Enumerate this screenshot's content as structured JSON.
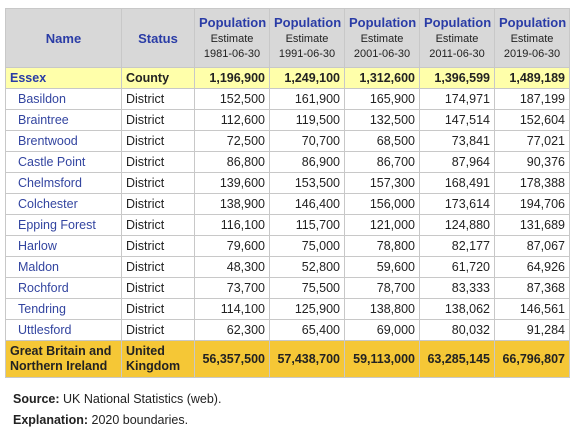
{
  "table": {
    "headers": [
      "Name",
      "Status"
    ],
    "population_headers": [
      {
        "title": "Population",
        "sub": "Estimate",
        "date": "1981-06-30"
      },
      {
        "title": "Population",
        "sub": "Estimate",
        "date": "1991-06-30"
      },
      {
        "title": "Population",
        "sub": "Estimate",
        "date": "2001-06-30"
      },
      {
        "title": "Population",
        "sub": "Estimate",
        "date": "2011-06-30"
      },
      {
        "title": "Population",
        "sub": "Estimate",
        "date": "2019-06-30"
      }
    ],
    "rows": [
      [
        "Essex",
        "County",
        "1,196,900",
        "1,249,100",
        "1,312,600",
        "1,396,599",
        "1,489,189"
      ],
      [
        "Basildon",
        "District",
        "152,500",
        "161,900",
        "165,900",
        "174,971",
        "187,199"
      ],
      [
        "Braintree",
        "District",
        "112,600",
        "119,500",
        "132,500",
        "147,514",
        "152,604"
      ],
      [
        "Brentwood",
        "District",
        "72,500",
        "70,700",
        "68,500",
        "73,841",
        "77,021"
      ],
      [
        "Castle Point",
        "District",
        "86,800",
        "86,900",
        "86,700",
        "87,964",
        "90,376"
      ],
      [
        "Chelmsford",
        "District",
        "139,600",
        "153,500",
        "157,300",
        "168,491",
        "178,388"
      ],
      [
        "Colchester",
        "District",
        "138,900",
        "146,400",
        "156,000",
        "173,614",
        "194,706"
      ],
      [
        "Epping Forest",
        "District",
        "116,100",
        "115,700",
        "121,000",
        "124,880",
        "131,689"
      ],
      [
        "Harlow",
        "District",
        "79,600",
        "75,000",
        "78,800",
        "82,177",
        "87,067"
      ],
      [
        "Maldon",
        "District",
        "48,300",
        "52,800",
        "59,600",
        "61,720",
        "64,926"
      ],
      [
        "Rochford",
        "District",
        "73,700",
        "75,500",
        "78,700",
        "83,333",
        "87,368"
      ],
      [
        "Tendring",
        "District",
        "114,100",
        "125,900",
        "138,800",
        "138,062",
        "146,561"
      ],
      [
        "Uttlesford",
        "District",
        "62,300",
        "65,400",
        "69,000",
        "80,032",
        "91,284"
      ],
      [
        "Great Britain and Northern Ireland",
        "United Kingdom",
        "56,357,500",
        "57,438,700",
        "59,113,000",
        "63,285,145",
        "66,796,807"
      ]
    ]
  },
  "notes": [
    {
      "label": "Source:",
      "text": "UK National Statistics (web)."
    },
    {
      "label": "Explanation:",
      "text": "2020 boundaries."
    }
  ]
}
